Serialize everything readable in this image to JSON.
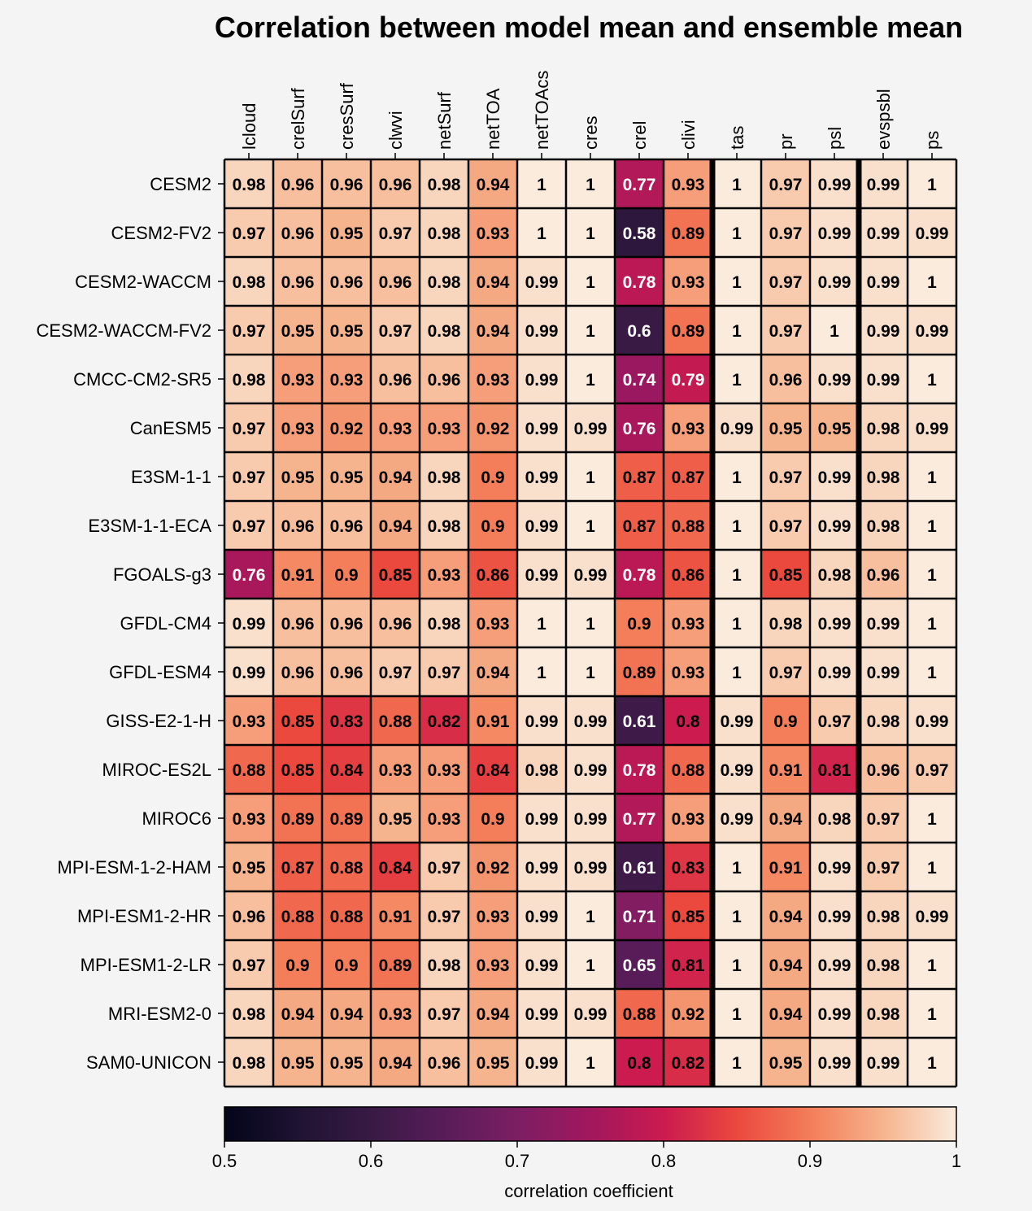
{
  "chart_data": {
    "type": "heatmap",
    "title": "Correlation between model mean and ensemble mean",
    "columns": [
      "lcloud",
      "crelSurf",
      "cresSurf",
      "clwvi",
      "netSurf",
      "netTOA",
      "netTOAcs",
      "cres",
      "crel",
      "clivi",
      "tas",
      "pr",
      "psl",
      "evspsbl",
      "ps"
    ],
    "rows": [
      "CESM2",
      "CESM2-FV2",
      "CESM2-WACCM",
      "CESM2-WACCM-FV2",
      "CMCC-CM2-SR5",
      "CanESM5",
      "E3SM-1-1",
      "E3SM-1-1-ECA",
      "FGOALS-g3",
      "GFDL-CM4",
      "GFDL-ESM4",
      "GISS-E2-1-H",
      "MIROC-ES2L",
      "MIROC6",
      "MPI-ESM-1-2-HAM",
      "MPI-ESM1-2-HR",
      "MPI-ESM1-2-LR",
      "MRI-ESM2-0",
      "SAM0-UNICON"
    ],
    "values": [
      [
        0.98,
        0.96,
        0.96,
        0.96,
        0.98,
        0.94,
        1,
        1,
        0.77,
        0.93,
        1,
        0.97,
        0.99,
        0.99,
        1
      ],
      [
        0.97,
        0.96,
        0.95,
        0.97,
        0.98,
        0.93,
        1,
        1,
        0.58,
        0.89,
        1,
        0.97,
        0.99,
        0.99,
        0.99
      ],
      [
        0.98,
        0.96,
        0.96,
        0.96,
        0.98,
        0.94,
        0.99,
        1,
        0.78,
        0.93,
        1,
        0.97,
        0.99,
        0.99,
        1
      ],
      [
        0.97,
        0.95,
        0.95,
        0.97,
        0.98,
        0.94,
        0.99,
        1,
        0.6,
        0.89,
        1,
        0.97,
        1,
        0.99,
        0.99
      ],
      [
        0.98,
        0.93,
        0.93,
        0.96,
        0.96,
        0.93,
        0.99,
        1,
        0.74,
        0.79,
        1,
        0.96,
        0.99,
        0.99,
        1
      ],
      [
        0.97,
        0.93,
        0.92,
        0.93,
        0.93,
        0.92,
        0.99,
        0.99,
        0.76,
        0.93,
        0.99,
        0.95,
        0.95,
        0.98,
        0.99
      ],
      [
        0.97,
        0.95,
        0.95,
        0.94,
        0.98,
        0.9,
        0.99,
        1,
        0.87,
        0.87,
        1,
        0.97,
        0.99,
        0.98,
        1
      ],
      [
        0.97,
        0.96,
        0.96,
        0.94,
        0.98,
        0.9,
        0.99,
        1,
        0.87,
        0.88,
        1,
        0.97,
        0.99,
        0.98,
        1
      ],
      [
        0.76,
        0.91,
        0.9,
        0.85,
        0.93,
        0.86,
        0.99,
        0.99,
        0.78,
        0.86,
        1,
        0.85,
        0.98,
        0.96,
        1
      ],
      [
        0.99,
        0.96,
        0.96,
        0.96,
        0.98,
        0.93,
        1,
        1,
        0.9,
        0.93,
        1,
        0.98,
        0.99,
        0.99,
        1
      ],
      [
        0.99,
        0.96,
        0.96,
        0.97,
        0.97,
        0.94,
        1,
        1,
        0.89,
        0.93,
        1,
        0.97,
        0.99,
        0.99,
        1
      ],
      [
        0.93,
        0.85,
        0.83,
        0.88,
        0.82,
        0.91,
        0.99,
        0.99,
        0.61,
        0.8,
        0.99,
        0.9,
        0.97,
        0.98,
        0.99
      ],
      [
        0.88,
        0.85,
        0.84,
        0.93,
        0.93,
        0.84,
        0.98,
        0.99,
        0.78,
        0.88,
        0.99,
        0.91,
        0.81,
        0.96,
        0.97
      ],
      [
        0.93,
        0.89,
        0.89,
        0.95,
        0.93,
        0.9,
        0.99,
        0.99,
        0.77,
        0.93,
        0.99,
        0.94,
        0.98,
        0.97,
        1
      ],
      [
        0.95,
        0.87,
        0.88,
        0.84,
        0.97,
        0.92,
        0.99,
        0.99,
        0.61,
        0.83,
        1,
        0.91,
        0.99,
        0.97,
        1
      ],
      [
        0.96,
        0.88,
        0.88,
        0.91,
        0.97,
        0.93,
        0.99,
        1,
        0.71,
        0.85,
        1,
        0.94,
        0.99,
        0.98,
        0.99
      ],
      [
        0.97,
        0.9,
        0.9,
        0.89,
        0.98,
        0.93,
        0.99,
        1,
        0.65,
        0.81,
        1,
        0.94,
        0.99,
        0.98,
        1
      ],
      [
        0.98,
        0.94,
        0.94,
        0.93,
        0.97,
        0.94,
        0.99,
        0.99,
        0.88,
        0.92,
        1,
        0.94,
        0.99,
        0.98,
        1
      ],
      [
        0.98,
        0.95,
        0.95,
        0.94,
        0.96,
        0.95,
        0.99,
        1,
        0.8,
        0.82,
        1,
        0.95,
        0.99,
        0.99,
        1
      ]
    ],
    "group_separators_after_column": [
      "clivi",
      "psl"
    ],
    "colormap": "rocket",
    "vmin": 0.5,
    "vmax": 1,
    "colorbar": {
      "orientation": "horizontal",
      "placement": "bottom",
      "ticks": [
        0.5,
        0.6,
        0.7,
        0.8,
        0.9,
        1
      ],
      "tick_labels": [
        "0.5",
        "0.6",
        "0.7",
        "0.8",
        "0.9",
        "1"
      ],
      "label": "correlation coefficient"
    },
    "cell_text_dark": "#000000",
    "cell_text_light": "#ffffff",
    "background": "#f4f4f4"
  }
}
